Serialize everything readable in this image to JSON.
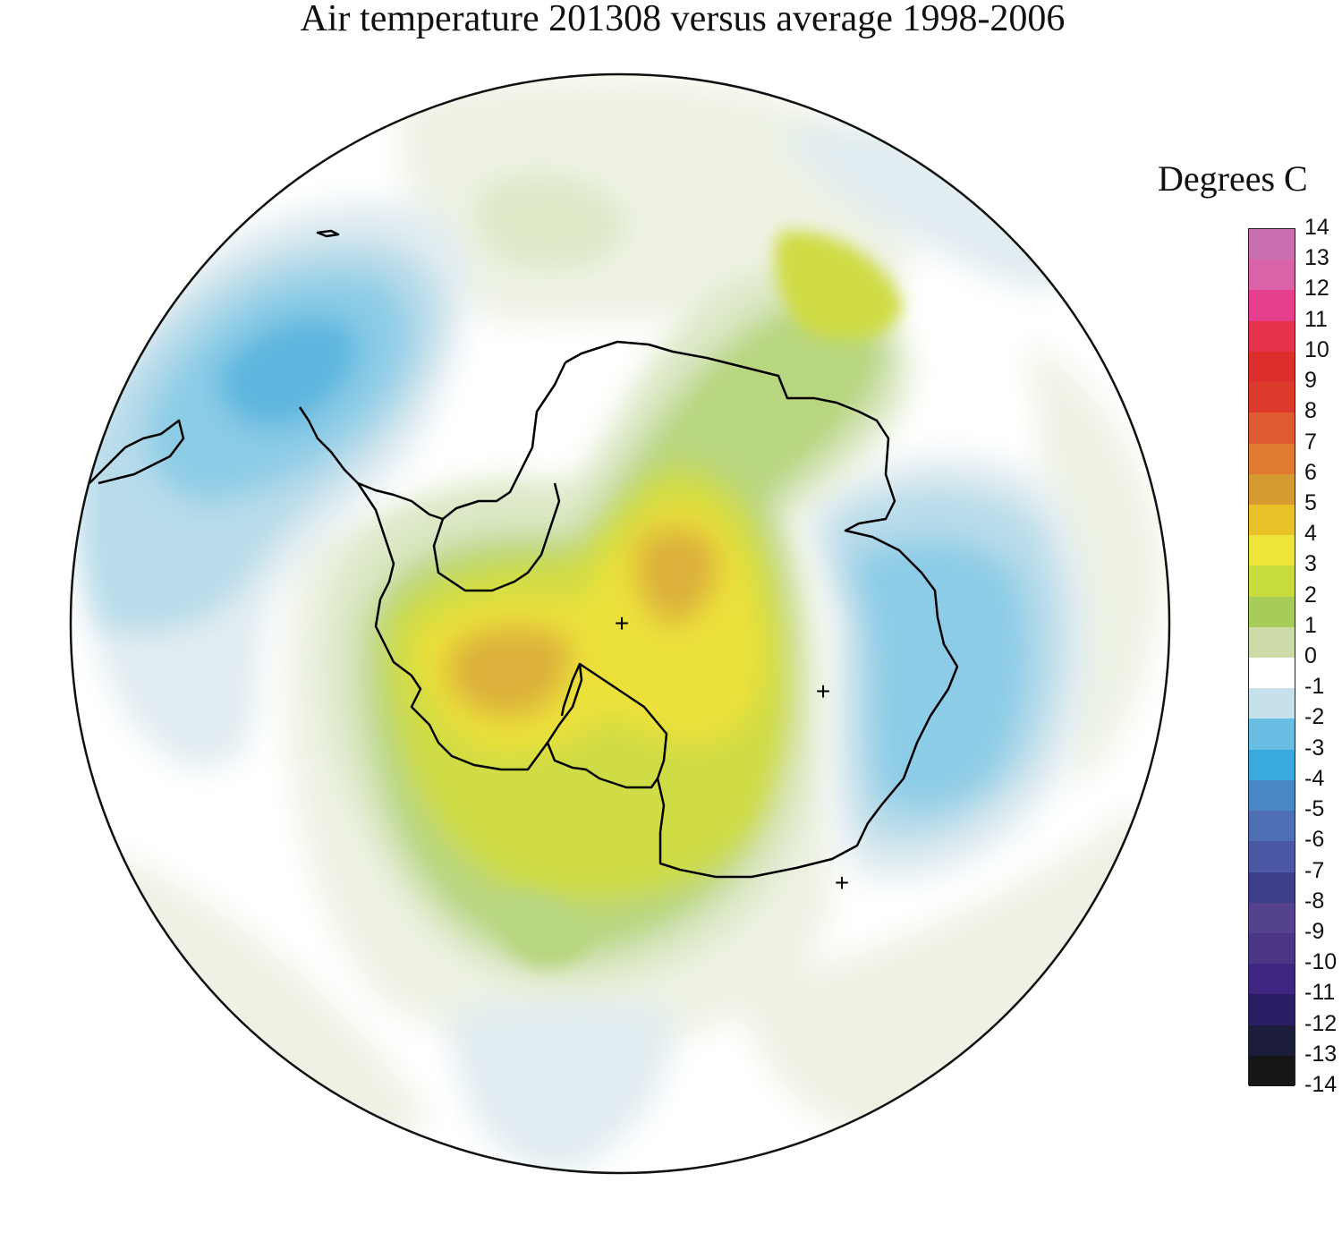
{
  "title": "Air temperature 201308 versus average 1998-2006",
  "legend": {
    "units_label": "Degrees C",
    "ticks": [
      "14",
      "13",
      "12",
      "11",
      "10",
      "9",
      "8",
      "7",
      "6",
      "5",
      "4",
      "3",
      "2",
      "1",
      "0",
      "-1",
      "-2",
      "-3",
      "-4",
      "-5",
      "-6",
      "-7",
      "-8",
      "-9",
      "-10",
      "-11",
      "-12",
      "-13",
      "-14"
    ],
    "colors": [
      "#c96fb0",
      "#d963a6",
      "#e53f8e",
      "#e5334d",
      "#dc2f2c",
      "#dc3a2c",
      "#df5a30",
      "#e07a32",
      "#d69a32",
      "#e9c227",
      "#efe53a",
      "#c8dd3d",
      "#a6cc59",
      "#cddba8",
      "#ffffff",
      "#c7e1ec",
      "#68bee2",
      "#3aa9df",
      "#4a86c4",
      "#4f6fb4",
      "#4a57a3",
      "#3d3f8b",
      "#55428d",
      "#4b3686",
      "#3e2680",
      "#2a1d63",
      "#1c1d3a",
      "#161616"
    ]
  },
  "map": {
    "projection": "south polar stereographic",
    "marker_symbol": "+",
    "colors": {
      "coast": "#000000",
      "neutral": "#ffffff",
      "slight_warm": "#eef2e4",
      "warm_1": "#dce8c6",
      "warm_2": "#b8d67f",
      "warm_3": "#cfdc45",
      "warm_4": "#ece13a",
      "warm_5": "#dcb03a",
      "warm_6": "#cf9d38",
      "cool_slight": "#e2edf1",
      "cool_1": "#b8dcea",
      "cool_2": "#8ccce6",
      "cool_3": "#5bb6df"
    }
  }
}
